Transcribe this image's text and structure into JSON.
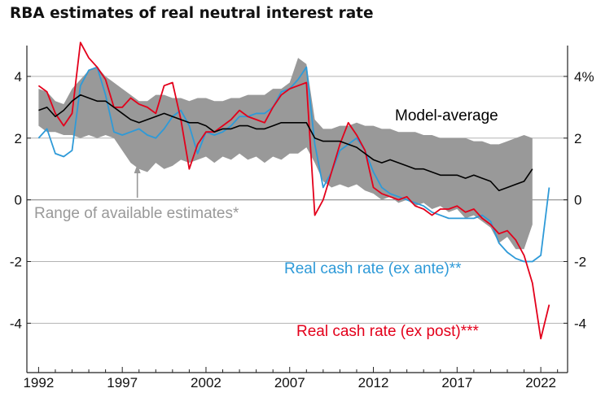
{
  "title": "RBA estimates of real neutral interest rate",
  "chart_data": {
    "type": "line",
    "title": "RBA estimates of real neutral interest rate",
    "xlim": [
      1991.3,
      2023.6
    ],
    "ylim": [
      -5.6,
      5.0
    ],
    "x_ticks": [
      1992,
      1997,
      2002,
      2007,
      2012,
      2017,
      2022
    ],
    "x_tick_labels": [
      "1992",
      "1997",
      "2002",
      "2007",
      "2012",
      "2017",
      "2022"
    ],
    "y_ticks_left": [
      4,
      2,
      0,
      -2,
      -4
    ],
    "y_tick_labels_left": [
      "4",
      "2",
      "0",
      "-2",
      "-4"
    ],
    "y_ticks_right": [
      4,
      2,
      0,
      -2,
      -4
    ],
    "y_tick_labels_right": [
      "4%",
      "2",
      "0",
      "-2",
      "-4"
    ],
    "grid": "horizontal",
    "annotations": {
      "model_average": "Model-average",
      "range": "Range of available estimates*",
      "ex_ante": "Real cash rate (ex ante)**",
      "ex_post": "Real cash rate (ex post)***"
    },
    "colors": {
      "range": "#999999",
      "model_average": "#000000",
      "ex_ante": "#2e9ad8",
      "ex_post": "#e3001b",
      "grid": "#b3b3b3"
    },
    "range_band": {
      "x": [
        1992.0,
        1992.5,
        1993.0,
        1993.5,
        1994.0,
        1994.5,
        1995.0,
        1995.5,
        1996.0,
        1996.5,
        1997.0,
        1997.5,
        1998.0,
        1998.5,
        1999.0,
        1999.5,
        2000.0,
        2000.5,
        2001.0,
        2001.5,
        2002.0,
        2002.5,
        2003.0,
        2003.5,
        2004.0,
        2004.5,
        2005.0,
        2005.5,
        2006.0,
        2006.5,
        2007.0,
        2007.5,
        2008.0,
        2008.5,
        2009.0,
        2009.5,
        2010.0,
        2010.5,
        2011.0,
        2011.5,
        2012.0,
        2012.5,
        2013.0,
        2013.5,
        2014.0,
        2014.5,
        2015.0,
        2015.5,
        2016.0,
        2016.5,
        2017.0,
        2017.5,
        2018.0,
        2018.5,
        2019.0,
        2019.5,
        2020.0,
        2020.5,
        2021.0,
        2021.5
      ],
      "upper": [
        3.6,
        3.5,
        3.2,
        3.1,
        3.6,
        3.9,
        4.2,
        4.3,
        4.0,
        3.8,
        3.6,
        3.4,
        3.2,
        3.2,
        3.4,
        3.4,
        3.3,
        3.3,
        3.2,
        3.3,
        3.3,
        3.2,
        3.2,
        3.3,
        3.3,
        3.4,
        3.4,
        3.4,
        3.6,
        3.6,
        3.8,
        4.6,
        4.4,
        2.6,
        2.3,
        2.3,
        2.4,
        2.4,
        2.5,
        2.4,
        2.4,
        2.3,
        2.3,
        2.2,
        2.2,
        2.2,
        2.1,
        2.1,
        2.0,
        2.0,
        2.0,
        2.0,
        1.9,
        1.9,
        1.8,
        1.8,
        1.9,
        2.0,
        2.1,
        2.0
      ],
      "lower": [
        2.4,
        2.2,
        2.2,
        2.1,
        2.1,
        2.0,
        2.1,
        2.0,
        2.1,
        2.0,
        1.6,
        1.2,
        1.0,
        0.9,
        1.2,
        1.0,
        1.1,
        1.3,
        1.2,
        1.3,
        1.4,
        1.2,
        1.4,
        1.3,
        1.5,
        1.3,
        1.4,
        1.2,
        1.4,
        1.3,
        1.5,
        1.5,
        1.7,
        1.2,
        0.6,
        0.4,
        0.5,
        0.4,
        0.5,
        0.3,
        0.2,
        0.0,
        0.1,
        -0.1,
        0.0,
        -0.2,
        -0.1,
        -0.3,
        -0.2,
        -0.4,
        -0.3,
        -0.6,
        -0.5,
        -0.7,
        -0.9,
        -1.4,
        -1.2,
        -1.6,
        -1.6,
        -0.8
      ]
    },
    "series": [
      {
        "name": "Model-average",
        "x": [
          1992.0,
          1992.5,
          1993.0,
          1993.5,
          1994.0,
          1994.5,
          1995.0,
          1995.5,
          1996.0,
          1996.5,
          1997.0,
          1997.5,
          1998.0,
          1998.5,
          1999.0,
          1999.5,
          2000.0,
          2000.5,
          2001.0,
          2001.5,
          2002.0,
          2002.5,
          2003.0,
          2003.5,
          2004.0,
          2004.5,
          2005.0,
          2005.5,
          2006.0,
          2006.5,
          2007.0,
          2007.5,
          2008.0,
          2008.5,
          2009.0,
          2009.5,
          2010.0,
          2010.5,
          2011.0,
          2011.5,
          2012.0,
          2012.5,
          2013.0,
          2013.5,
          2014.0,
          2014.5,
          2015.0,
          2015.5,
          2016.0,
          2016.5,
          2017.0,
          2017.5,
          2018.0,
          2018.5,
          2019.0,
          2019.5,
          2020.0,
          2020.5,
          2021.0,
          2021.5
        ],
        "values": [
          2.9,
          3.0,
          2.7,
          2.9,
          3.2,
          3.4,
          3.3,
          3.2,
          3.2,
          3.0,
          2.8,
          2.6,
          2.5,
          2.6,
          2.7,
          2.8,
          2.7,
          2.6,
          2.5,
          2.5,
          2.4,
          2.2,
          2.3,
          2.3,
          2.4,
          2.4,
          2.3,
          2.3,
          2.4,
          2.5,
          2.5,
          2.5,
          2.5,
          2.0,
          1.9,
          1.9,
          1.9,
          1.8,
          1.7,
          1.5,
          1.3,
          1.2,
          1.3,
          1.2,
          1.1,
          1.0,
          1.0,
          0.9,
          0.8,
          0.8,
          0.8,
          0.7,
          0.8,
          0.7,
          0.6,
          0.3,
          0.4,
          0.5,
          0.6,
          1.0
        ]
      },
      {
        "name": "Real cash rate (ex ante)**",
        "x": [
          1992.0,
          1992.5,
          1993.0,
          1993.5,
          1994.0,
          1994.5,
          1995.0,
          1995.5,
          1996.0,
          1996.5,
          1997.0,
          1997.5,
          1998.0,
          1998.5,
          1999.0,
          1999.5,
          2000.0,
          2000.5,
          2001.0,
          2001.5,
          2002.0,
          2002.5,
          2003.0,
          2003.5,
          2004.0,
          2004.5,
          2005.0,
          2005.5,
          2006.0,
          2006.5,
          2007.0,
          2007.5,
          2008.0,
          2008.5,
          2009.0,
          2009.5,
          2010.0,
          2010.5,
          2011.0,
          2011.5,
          2012.0,
          2012.5,
          2013.0,
          2013.5,
          2014.0,
          2014.5,
          2015.0,
          2015.5,
          2016.0,
          2016.5,
          2017.0,
          2017.5,
          2018.0,
          2018.5,
          2019.0,
          2019.5,
          2020.0,
          2020.5,
          2021.0,
          2021.5,
          2022.0,
          2022.5
        ],
        "values": [
          2.0,
          2.3,
          1.5,
          1.4,
          1.6,
          3.7,
          4.2,
          4.3,
          3.4,
          2.2,
          2.1,
          2.2,
          2.3,
          2.1,
          2.0,
          2.3,
          2.7,
          2.9,
          2.4,
          1.5,
          2.2,
          2.1,
          2.2,
          2.4,
          2.7,
          2.7,
          2.8,
          2.8,
          3.0,
          3.5,
          3.6,
          3.9,
          4.3,
          1.8,
          0.4,
          0.9,
          1.6,
          1.8,
          2.0,
          1.6,
          0.9,
          0.4,
          0.2,
          0.1,
          0.0,
          -0.1,
          -0.2,
          -0.4,
          -0.5,
          -0.6,
          -0.6,
          -0.6,
          -0.6,
          -0.5,
          -0.7,
          -1.4,
          -1.7,
          -1.9,
          -2.0,
          -2.0,
          -1.8,
          0.4
        ]
      },
      {
        "name": "Real cash rate (ex post)***",
        "x": [
          1992.0,
          1992.5,
          1993.0,
          1993.5,
          1994.0,
          1994.5,
          1995.0,
          1995.5,
          1996.0,
          1996.5,
          1997.0,
          1997.5,
          1998.0,
          1998.5,
          1999.0,
          1999.5,
          2000.0,
          2000.5,
          2001.0,
          2001.5,
          2002.0,
          2002.5,
          2003.0,
          2003.5,
          2004.0,
          2004.5,
          2005.0,
          2005.5,
          2006.0,
          2006.5,
          2007.0,
          2007.5,
          2008.0,
          2008.5,
          2009.0,
          2009.5,
          2010.0,
          2010.5,
          2011.0,
          2011.5,
          2012.0,
          2012.5,
          2013.0,
          2013.5,
          2014.0,
          2014.5,
          2015.0,
          2015.5,
          2016.0,
          2016.5,
          2017.0,
          2017.5,
          2018.0,
          2018.5,
          2019.0,
          2019.5,
          2020.0,
          2020.5,
          2021.0,
          2021.5,
          2022.0,
          2022.5
        ],
        "values": [
          3.7,
          3.5,
          2.8,
          2.4,
          2.8,
          5.1,
          4.6,
          4.3,
          3.9,
          3.0,
          3.0,
          3.3,
          3.1,
          3.0,
          2.8,
          3.7,
          3.8,
          2.6,
          1.0,
          1.8,
          2.2,
          2.2,
          2.4,
          2.6,
          2.9,
          2.7,
          2.6,
          2.5,
          3.0,
          3.4,
          3.6,
          3.7,
          3.8,
          -0.5,
          0.0,
          0.9,
          1.8,
          2.5,
          2.1,
          1.6,
          0.4,
          0.2,
          0.1,
          0.0,
          0.1,
          -0.2,
          -0.3,
          -0.5,
          -0.3,
          -0.3,
          -0.2,
          -0.4,
          -0.3,
          -0.6,
          -0.8,
          -1.1,
          -1.0,
          -1.3,
          -1.8,
          -2.7,
          -4.5,
          -3.4
        ]
      }
    ]
  }
}
